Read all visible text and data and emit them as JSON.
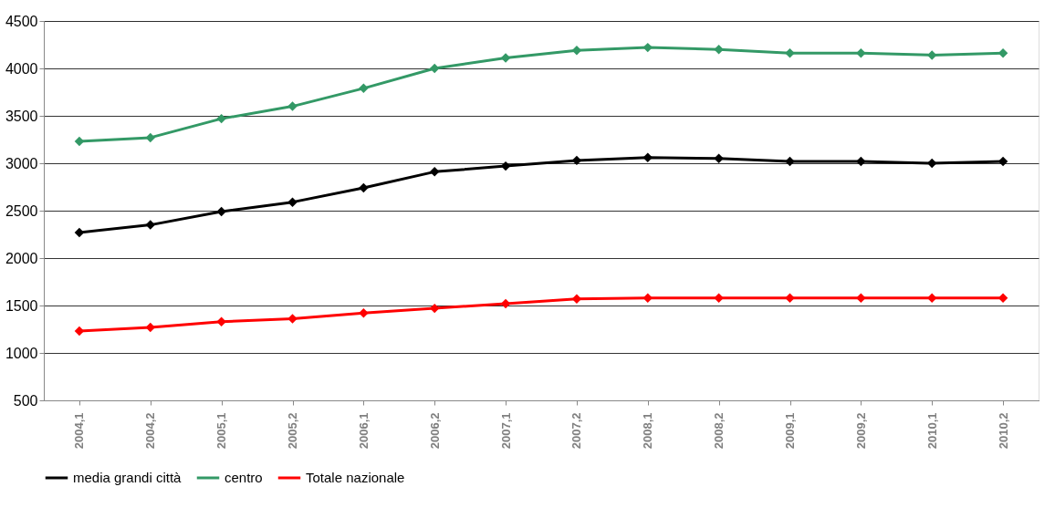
{
  "chart_data": {
    "type": "line",
    "categories": [
      "2004,1",
      "2004,2",
      "2005,1",
      "2005,2",
      "2006,1",
      "2006,2",
      "2007,1",
      "2007,2",
      "2008,1",
      "2008,2",
      "2009,1",
      "2009,2",
      "2010,1",
      "2010,2"
    ],
    "series": [
      {
        "name": "media grandi città",
        "color": "#000000",
        "values": [
          2270,
          2350,
          2490,
          2590,
          2740,
          2910,
          2970,
          3030,
          3060,
          3050,
          3020,
          3020,
          3000,
          3020
        ]
      },
      {
        "name": "centro",
        "color": "#339966",
        "values": [
          3230,
          3270,
          3470,
          3600,
          3790,
          4000,
          4110,
          4190,
          4220,
          4200,
          4160,
          4160,
          4140,
          4160
        ]
      },
      {
        "name": "Totale nazionale",
        "color": "#ff0000",
        "values": [
          1230,
          1270,
          1330,
          1360,
          1420,
          1470,
          1520,
          1570,
          1580,
          1580,
          1580,
          1580,
          1580,
          1580
        ]
      }
    ],
    "ylim": [
      500,
      4500
    ],
    "yticks": [
      500,
      1000,
      1500,
      2000,
      2500,
      3000,
      3500,
      4000,
      4500
    ],
    "grid": "y",
    "legend": "bottom",
    "marker": "diamond",
    "line_style": "solid"
  }
}
